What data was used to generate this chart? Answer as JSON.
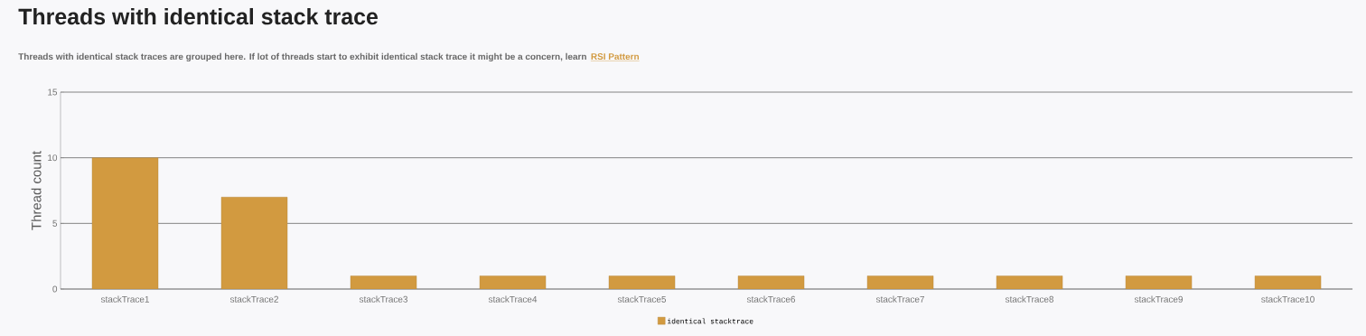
{
  "chart_data": {
    "type": "bar",
    "title": "Threads with identical stack trace",
    "subtitle": "Threads with identical stack traces are grouped here. If lot of threads start to exhibit identical stack trace it might be a concern, learn",
    "annotations": [
      "RSI Pattern"
    ],
    "ylabel": "Thread count",
    "categories": [
      "stackTrace1",
      "stackTrace2",
      "stackTrace3",
      "stackTrace4",
      "stackTrace5",
      "stackTrace6",
      "stackTrace7",
      "stackTrace8",
      "stackTrace9",
      "stackTrace10"
    ],
    "series": [
      {
        "name": "identical stacktrace",
        "color": "#d29a40",
        "values": [
          10,
          7,
          1,
          1,
          1,
          1,
          1,
          1,
          1,
          1
        ]
      }
    ],
    "ylim": [
      0,
      15
    ],
    "yticks": [
      0,
      5,
      10,
      15
    ],
    "grid": "y",
    "legend": "bottom"
  }
}
